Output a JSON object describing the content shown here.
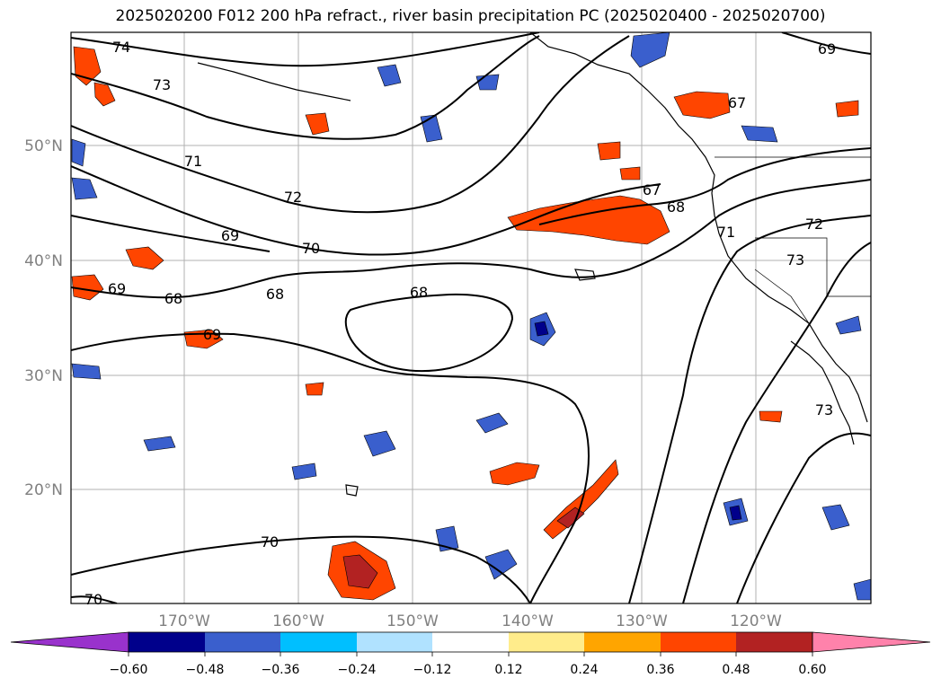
{
  "title": "2025020200 F012 200 hPa refract., river basin precipitation PC (2025020400 - 2025020700)",
  "map": {
    "lat_labels": [
      {
        "lat": 50,
        "label": "50°N"
      },
      {
        "lat": 40,
        "label": "40°N"
      },
      {
        "lat": 30,
        "label": "30°N"
      },
      {
        "lat": 20,
        "label": "20°N"
      }
    ],
    "lon_labels": [
      {
        "lon": -170,
        "label": "170°W"
      },
      {
        "lon": -160,
        "label": "160°W"
      },
      {
        "lon": -150,
        "label": "150°W"
      },
      {
        "lon": -140,
        "label": "140°W"
      },
      {
        "lon": -130,
        "label": "130°W"
      },
      {
        "lon": -120,
        "label": "120°W"
      }
    ],
    "contour_labels": [
      "74",
      "73",
      "71",
      "72",
      "69",
      "70",
      "68",
      "69",
      "68",
      "68",
      "69",
      "67",
      "68",
      "71",
      "72",
      "73",
      "73",
      "70",
      "70",
      "69",
      "67"
    ],
    "grid_color": "#b0b0b0",
    "contour_color": "#000000",
    "coast_color": "#000000"
  },
  "colorbar": {
    "ticks": [
      "−0.60",
      "−0.48",
      "−0.36",
      "−0.24",
      "−0.12",
      "0.12",
      "0.24",
      "0.36",
      "0.48",
      "0.60"
    ],
    "colors": [
      "#9932cc",
      "#00008b",
      "#3a5fcd",
      "#00bfff",
      "#b0e2ff",
      "#ffffff",
      "#ffec8b",
      "#ffa500",
      "#ff4500",
      "#b22222",
      "#ff82ab"
    ]
  }
}
